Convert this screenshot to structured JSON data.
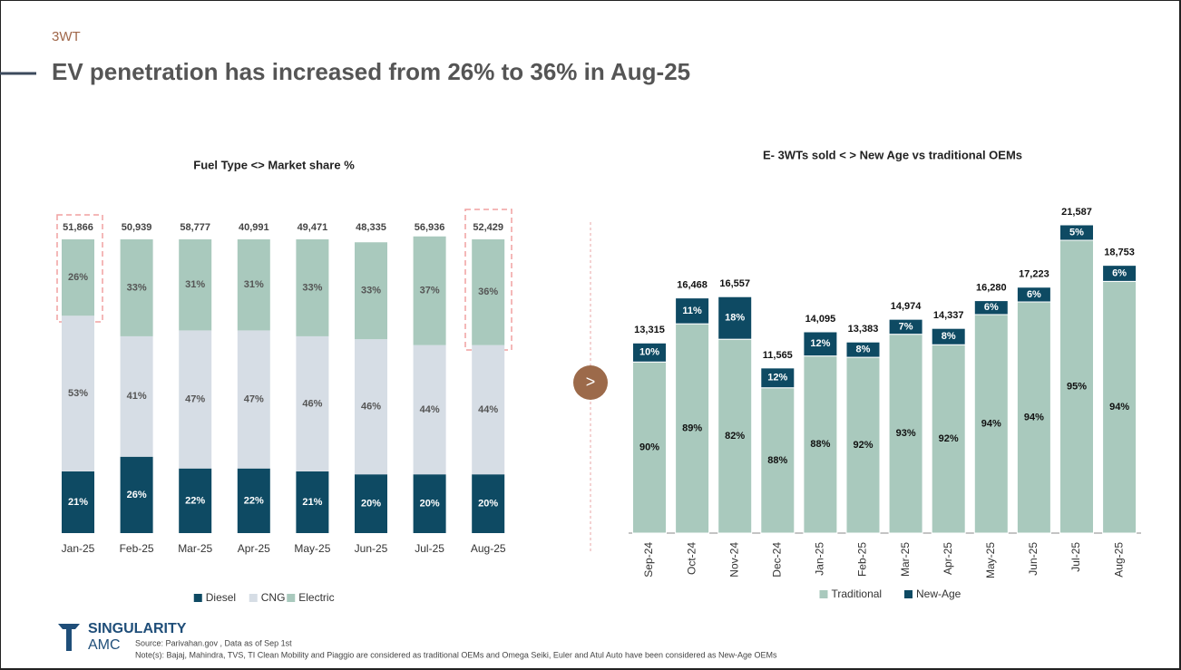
{
  "section": "3WT",
  "title": "EV penetration has increased from 26% to 36% in Aug-25",
  "source": "Source: Parivahan.gov , Data as of Sep 1st",
  "note": "Note(s): Bajaj, Mahindra, TVS, TI Clean Mobility and Piaggio are considered as traditional OEMs and Omega Seiki, Euler and Atul Auto have been considered as New-Age OEMs",
  "logo": {
    "name": "SINGULARITY",
    "sub": "AMC"
  },
  "chart_data": [
    {
      "type": "stacked-bar",
      "title": "Fuel Type <> Market share %",
      "categories": [
        "Jan-25",
        "Feb-25",
        "Mar-25",
        "Apr-25",
        "May-25",
        "Jun-25",
        "Jul-25",
        "Aug-25"
      ],
      "series": [
        {
          "name": "Diesel",
          "color": "#0e4a63",
          "values": [
            21,
            26,
            22,
            22,
            21,
            20,
            20,
            20
          ],
          "value_labels": [
            "21%",
            "26%",
            "22%",
            "22%",
            "21%",
            "20%",
            "20%",
            "20%"
          ]
        },
        {
          "name": "CNG",
          "color": "#d6dde5",
          "values": [
            53,
            41,
            47,
            47,
            46,
            46,
            44,
            44
          ],
          "value_labels": [
            "53%",
            "41%",
            "47%",
            "47%",
            "46%",
            "46%",
            "44%",
            "44%"
          ]
        },
        {
          "name": "Electric",
          "color": "#a9c9bd",
          "values": [
            26,
            33,
            31,
            31,
            33,
            33,
            37,
            36
          ],
          "value_labels": [
            "26%",
            "33%",
            "31%",
            "31%",
            "33%",
            "33%",
            "37%",
            "36%"
          ]
        }
      ],
      "totals": [
        {
          "value": 51866,
          "label": "51,866"
        },
        {
          "value": 50939,
          "label": "50,939"
        },
        {
          "value": 58777,
          "label": "58,777"
        },
        {
          "value": 40991,
          "label": "40,991"
        },
        {
          "value": 49471,
          "label": "49,471"
        },
        {
          "value": 48335,
          "label": "48,335"
        },
        {
          "value": 56936,
          "label": "56,936"
        },
        {
          "value": 52429,
          "label": "52,429"
        }
      ]
    },
    {
      "type": "share-of-total-bar",
      "title": "E- 3WTs sold < > New Age vs traditional OEMs",
      "categories": [
        "Sep-24",
        "Oct-24",
        "Nov-24",
        "Dec-24",
        "Jan-25",
        "Feb-25",
        "Mar-25",
        "Apr-25",
        "May-25",
        "Jun-25",
        "Jul-25",
        "Aug-25"
      ],
      "series": [
        {
          "name": "Traditional",
          "color": "#a9c9bd",
          "values": [
            90,
            89,
            82,
            88,
            88,
            92,
            93,
            92,
            94,
            94,
            95,
            94
          ],
          "value_labels": [
            "90%",
            "89%",
            "82%",
            "88%",
            "88%",
            "92%",
            "93%",
            "92%",
            "94%",
            "94%",
            "95%",
            "94%"
          ]
        },
        {
          "name": "New-Age",
          "color": "#0e4a63",
          "values": [
            10,
            11,
            18,
            12,
            12,
            8,
            7,
            8,
            6,
            6,
            5,
            6
          ],
          "value_labels": [
            "10%",
            "11%",
            "18%",
            "12%",
            "12%",
            "8%",
            "7%",
            "8%",
            "6%",
            "6%",
            "5%",
            "6%"
          ]
        }
      ],
      "totals": [
        {
          "value": 13315,
          "label": "13,315"
        },
        {
          "value": 16468,
          "label": "16,468"
        },
        {
          "value": 16557,
          "label": "16,557"
        },
        {
          "value": 11565,
          "label": "11,565"
        },
        {
          "value": 14095,
          "label": "14,095"
        },
        {
          "value": 13383,
          "label": "13,383"
        },
        {
          "value": 14974,
          "label": "14,974"
        },
        {
          "value": 14337,
          "label": "14,337"
        },
        {
          "value": 16280,
          "label": "16,280"
        },
        {
          "value": 17223,
          "label": "17,223"
        },
        {
          "value": 21587,
          "label": "21,587"
        },
        {
          "value": 18753,
          "label": "18,753"
        }
      ]
    }
  ]
}
